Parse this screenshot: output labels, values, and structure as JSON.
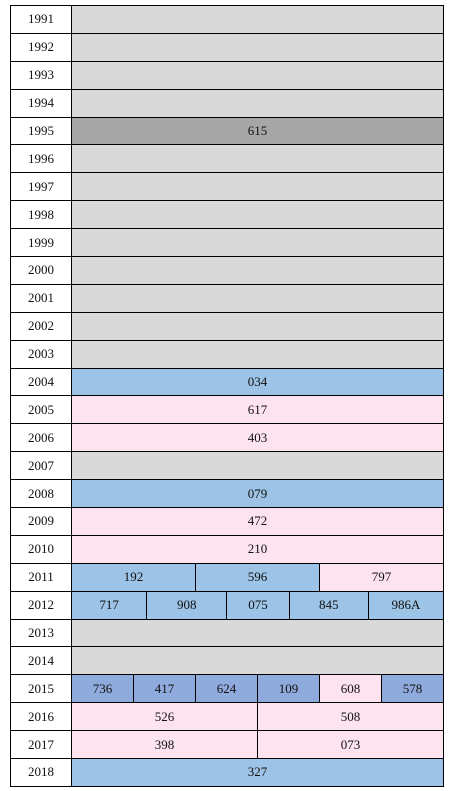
{
  "rows": [
    {
      "year": "1991",
      "cells": [
        {
          "color": "#d9d9d9"
        }
      ]
    },
    {
      "year": "1992",
      "cells": [
        {
          "color": "#d9d9d9"
        }
      ]
    },
    {
      "year": "1993",
      "cells": [
        {
          "color": "#d9d9d9"
        }
      ]
    },
    {
      "year": "1994",
      "cells": [
        {
          "color": "#d9d9d9"
        }
      ]
    },
    {
      "year": "1995",
      "cells": [
        {
          "text": "615",
          "color": "#a6a6a6"
        }
      ]
    },
    {
      "year": "1996",
      "cells": [
        {
          "color": "#d9d9d9"
        }
      ]
    },
    {
      "year": "1997",
      "cells": [
        {
          "color": "#d9d9d9"
        }
      ]
    },
    {
      "year": "1998",
      "cells": [
        {
          "color": "#d9d9d9"
        }
      ]
    },
    {
      "year": "1999",
      "cells": [
        {
          "color": "#d9d9d9"
        }
      ]
    },
    {
      "year": "2000",
      "cells": [
        {
          "color": "#d9d9d9"
        }
      ]
    },
    {
      "year": "2001",
      "cells": [
        {
          "color": "#d9d9d9"
        }
      ]
    },
    {
      "year": "2002",
      "cells": [
        {
          "color": "#d9d9d9"
        }
      ]
    },
    {
      "year": "2003",
      "cells": [
        {
          "color": "#d9d9d9"
        }
      ]
    },
    {
      "year": "2004",
      "cells": [
        {
          "text": "034",
          "color": "#9dc3e6"
        }
      ]
    },
    {
      "year": "2005",
      "cells": [
        {
          "text": "617",
          "color": "#fde3f0"
        }
      ]
    },
    {
      "year": "2006",
      "cells": [
        {
          "text": "403",
          "color": "#fde3f0"
        }
      ]
    },
    {
      "year": "2007",
      "cells": [
        {
          "color": "#d9d9d9"
        }
      ]
    },
    {
      "year": "2008",
      "cells": [
        {
          "text": "079",
          "color": "#9dc3e6"
        }
      ]
    },
    {
      "year": "2009",
      "cells": [
        {
          "text": "472",
          "color": "#fde3f0"
        }
      ]
    },
    {
      "year": "2010",
      "cells": [
        {
          "text": "210",
          "color": "#fde3f0"
        }
      ]
    },
    {
      "year": "2011",
      "cells": [
        {
          "text": "192",
          "color": "#9dc3e6"
        },
        {
          "text": "596",
          "color": "#9dc3e6"
        },
        {
          "text": "797",
          "color": "#fde3f0"
        }
      ]
    },
    {
      "year": "2012",
      "cells": [
        {
          "text": "717",
          "color": "#9dc3e6"
        },
        {
          "text": "908",
          "color": "#9dc3e6"
        },
        {
          "text": "075",
          "color": "#9dc3e6"
        },
        {
          "text": "845",
          "color": "#9dc3e6"
        },
        {
          "text": "986A",
          "color": "#9dc3e6"
        }
      ]
    },
    {
      "year": "2013",
      "cells": [
        {
          "color": "#d9d9d9"
        }
      ]
    },
    {
      "year": "2014",
      "cells": [
        {
          "color": "#d9d9d9"
        }
      ]
    },
    {
      "year": "2015",
      "cells": [
        {
          "text": "736",
          "color": "#8faadc"
        },
        {
          "text": "417",
          "color": "#8faadc"
        },
        {
          "text": "624",
          "color": "#8faadc"
        },
        {
          "text": "109",
          "color": "#8faadc"
        },
        {
          "text": "608",
          "color": "#fde3f0"
        },
        {
          "text": "578",
          "color": "#8faadc"
        }
      ]
    },
    {
      "year": "2016",
      "cells": [
        {
          "text": "526",
          "color": "#fde3f0"
        },
        {
          "text": "508",
          "color": "#fde3f0"
        }
      ]
    },
    {
      "year": "2017",
      "cells": [
        {
          "text": "398",
          "color": "#fde3f0"
        },
        {
          "text": "073",
          "color": "#fde3f0"
        }
      ]
    },
    {
      "year": "2018",
      "cells": [
        {
          "text": "327",
          "color": "#9dc3e6"
        }
      ]
    }
  ]
}
